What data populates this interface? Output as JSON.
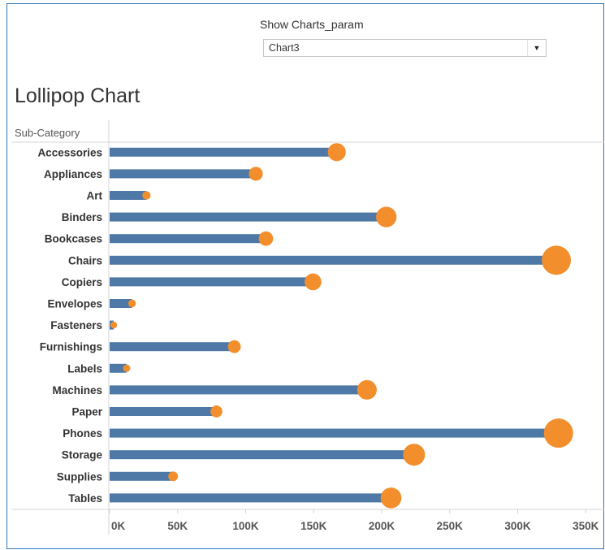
{
  "parameter": {
    "label": "Show Charts_param",
    "selected": "Chart3"
  },
  "colors": {
    "bar": "#4e79a7",
    "dot": "#f28e2b",
    "axis": "#d4d4d4",
    "frame": "#2e75b6"
  },
  "chart_data": {
    "type": "bar",
    "title": "Lollipop Chart",
    "row_header": "Sub-Category",
    "xlim": [
      0,
      360000
    ],
    "x_ticks": [
      0,
      50000,
      100000,
      150000,
      200000,
      250000,
      300000,
      350000
    ],
    "x_tick_labels": [
      "0K",
      "50K",
      "100K",
      "150K",
      "200K",
      "250K",
      "300K",
      "350K"
    ],
    "grid": false,
    "categories": [
      "Accessories",
      "Appliances",
      "Art",
      "Binders",
      "Bookcases",
      "Chairs",
      "Copiers",
      "Envelopes",
      "Fasteners",
      "Furnishings",
      "Labels",
      "Machines",
      "Paper",
      "Phones",
      "Storage",
      "Supplies",
      "Tables"
    ],
    "values": [
      167000,
      107500,
      27100,
      203400,
      114900,
      328400,
      149500,
      16500,
      3000,
      91700,
      12500,
      189200,
      78500,
      330000,
      223800,
      46700,
      206900
    ]
  }
}
